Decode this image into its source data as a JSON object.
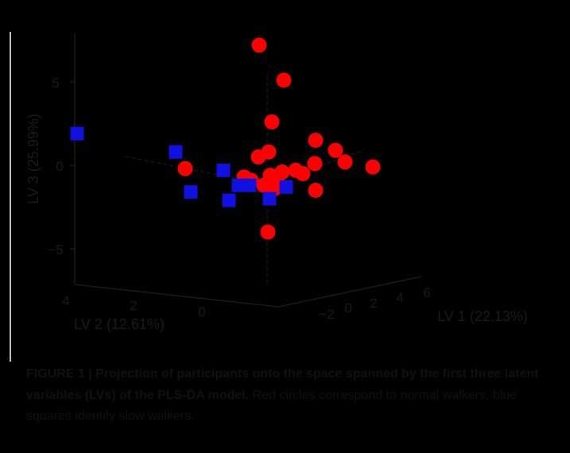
{
  "chart_data": {
    "type": "scatter",
    "projection": "3d",
    "axes": {
      "lv1": {
        "label": "LV 1 (22.13%)",
        "ticks": [
          "−2",
          "0",
          "2",
          "4",
          "6"
        ]
      },
      "lv2": {
        "label": "LV 2 (12.61%)",
        "ticks": [
          "4",
          "2",
          "0"
        ]
      },
      "lv3": {
        "label": "LV 3 (25.99%)",
        "ticks": [
          "5",
          "0",
          "−5"
        ]
      }
    },
    "series": [
      {
        "marker": "circle",
        "color": "#ff0000",
        "points": [
          {
            "lv3": 7.2
          },
          {
            "lv3": 5.1
          },
          {
            "lv3": 2.6
          },
          {
            "lv3": 1.5
          },
          {
            "lv3": 0.9
          },
          {
            "lv3": 0.8
          },
          {
            "lv3": 0.5
          },
          {
            "lv3": 0.2
          },
          {
            "lv3": 0.1
          },
          {
            "lv3": -0.1
          },
          {
            "lv3": -0.2
          },
          {
            "lv3": -0.3
          },
          {
            "lv3": -0.4
          },
          {
            "lv3": -0.5
          },
          {
            "lv3": -0.6
          },
          {
            "lv3": -0.7
          },
          {
            "lv3": -0.9
          },
          {
            "lv3": -1.0
          },
          {
            "lv3": -1.2
          },
          {
            "lv3": -1.4
          },
          {
            "lv3": -1.5
          },
          {
            "lv3": -4.0
          }
        ]
      },
      {
        "marker": "square",
        "color": "#1010e0",
        "points": [
          {
            "lv3": 1.9
          },
          {
            "lv3": 0.8
          },
          {
            "lv3": -0.3
          },
          {
            "lv3": -1.2
          },
          {
            "lv3": -1.3
          },
          {
            "lv3": -1.2
          },
          {
            "lv3": -1.6
          },
          {
            "lv3": -2.0
          },
          {
            "lv3": -2.1
          }
        ]
      }
    ]
  },
  "caption": {
    "lead": "FIGURE 1 | Projection of participants onto the space spanned by the first three latent variables (LVs) of the PLS-DA model.",
    "body": " Red circles correspond to normal walkers, blue squares identify slow walkers."
  }
}
